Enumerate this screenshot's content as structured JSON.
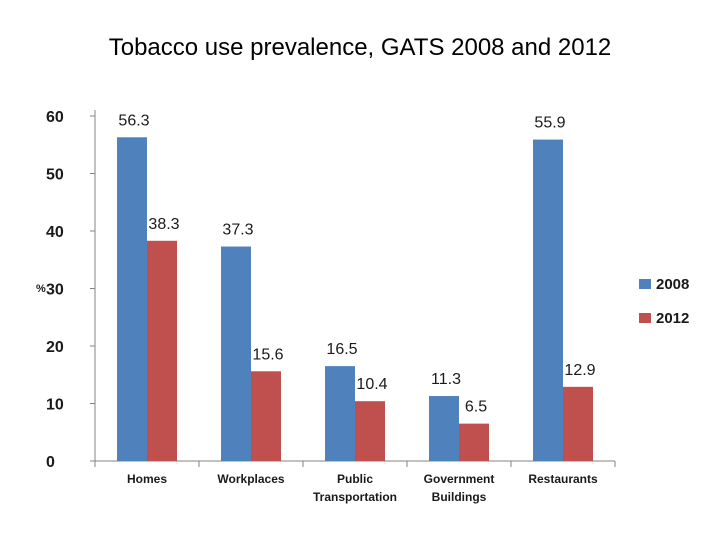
{
  "chart_data": {
    "type": "bar",
    "title": "Tobacco use prevalence, GATS 2008 and 2012",
    "ylabel": "%",
    "xlabel": "",
    "ylim": [
      0,
      60
    ],
    "yticks": [
      "0",
      "10",
      "20",
      "30",
      "40",
      "50",
      "60"
    ],
    "ytick_values": [
      0,
      10,
      20,
      30,
      40,
      50,
      60
    ],
    "categories": [
      [
        "Homes"
      ],
      [
        "Workplaces"
      ],
      [
        "Public",
        "Transportation"
      ],
      [
        "Government",
        "Buildings"
      ],
      [
        "Restaurants"
      ]
    ],
    "series": [
      {
        "name": "2008",
        "color": "#4f81bd",
        "values": [
          56.3,
          37.3,
          16.5,
          11.3,
          55.9
        ],
        "labels": [
          "56.3",
          "37.3",
          "16.5",
          "11.3",
          "55.9"
        ]
      },
      {
        "name": "2012",
        "color": "#c0504d",
        "values": [
          38.3,
          15.6,
          10.4,
          6.5,
          12.9
        ],
        "labels": [
          "38.3",
          "15.6",
          "10.4",
          "6.5",
          "12.9"
        ]
      }
    ],
    "legend": "right",
    "grid": false
  }
}
